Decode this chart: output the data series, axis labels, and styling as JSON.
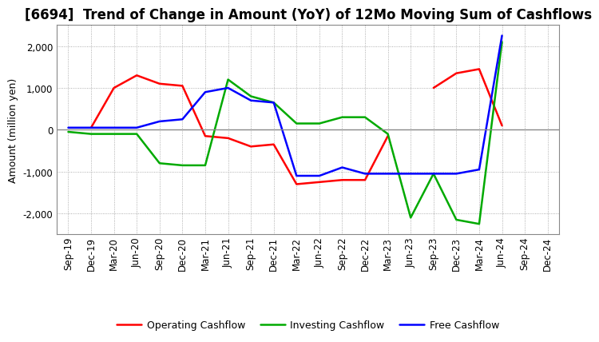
{
  "title": "[6694]  Trend of Change in Amount (YoY) of 12Mo Moving Sum of Cashflows",
  "ylabel": "Amount (million yen)",
  "x_labels": [
    "Sep-19",
    "Dec-19",
    "Mar-20",
    "Jun-20",
    "Sep-20",
    "Dec-20",
    "Mar-21",
    "Jun-21",
    "Sep-21",
    "Dec-21",
    "Mar-22",
    "Jun-22",
    "Sep-22",
    "Dec-22",
    "Mar-23",
    "Jun-23",
    "Sep-23",
    "Dec-23",
    "Mar-24",
    "Jun-24",
    "Sep-24",
    "Dec-24"
  ],
  "operating": [
    null,
    50,
    1000,
    1300,
    1100,
    1050,
    -150,
    -200,
    -400,
    -350,
    -1300,
    -1250,
    -1200,
    -1200,
    -150,
    null,
    1000,
    1350,
    1450,
    100,
    null,
    null
  ],
  "investing": [
    -50,
    -100,
    -100,
    -100,
    -800,
    -850,
    -850,
    1200,
    800,
    650,
    150,
    150,
    300,
    300,
    -100,
    -2100,
    -1050,
    -2150,
    -2250,
    2100,
    null,
    null
  ],
  "free": [
    50,
    50,
    50,
    50,
    200,
    250,
    900,
    1000,
    700,
    650,
    -1100,
    -1100,
    -900,
    -1050,
    -1050,
    -1050,
    -1050,
    -1050,
    -950,
    2250,
    null,
    null
  ],
  "colors": {
    "operating": "#ff0000",
    "investing": "#00aa00",
    "free": "#0000ff"
  },
  "ylim": [
    -2500,
    2500
  ],
  "yticks": [
    -2000,
    -1000,
    0,
    1000,
    2000
  ],
  "legend_labels": [
    "Operating Cashflow",
    "Investing Cashflow",
    "Free Cashflow"
  ],
  "background_color": "#ffffff",
  "grid_color": "#999999",
  "title_fontsize": 12,
  "axis_fontsize": 9,
  "tick_fontsize": 8.5,
  "linewidth": 1.8
}
